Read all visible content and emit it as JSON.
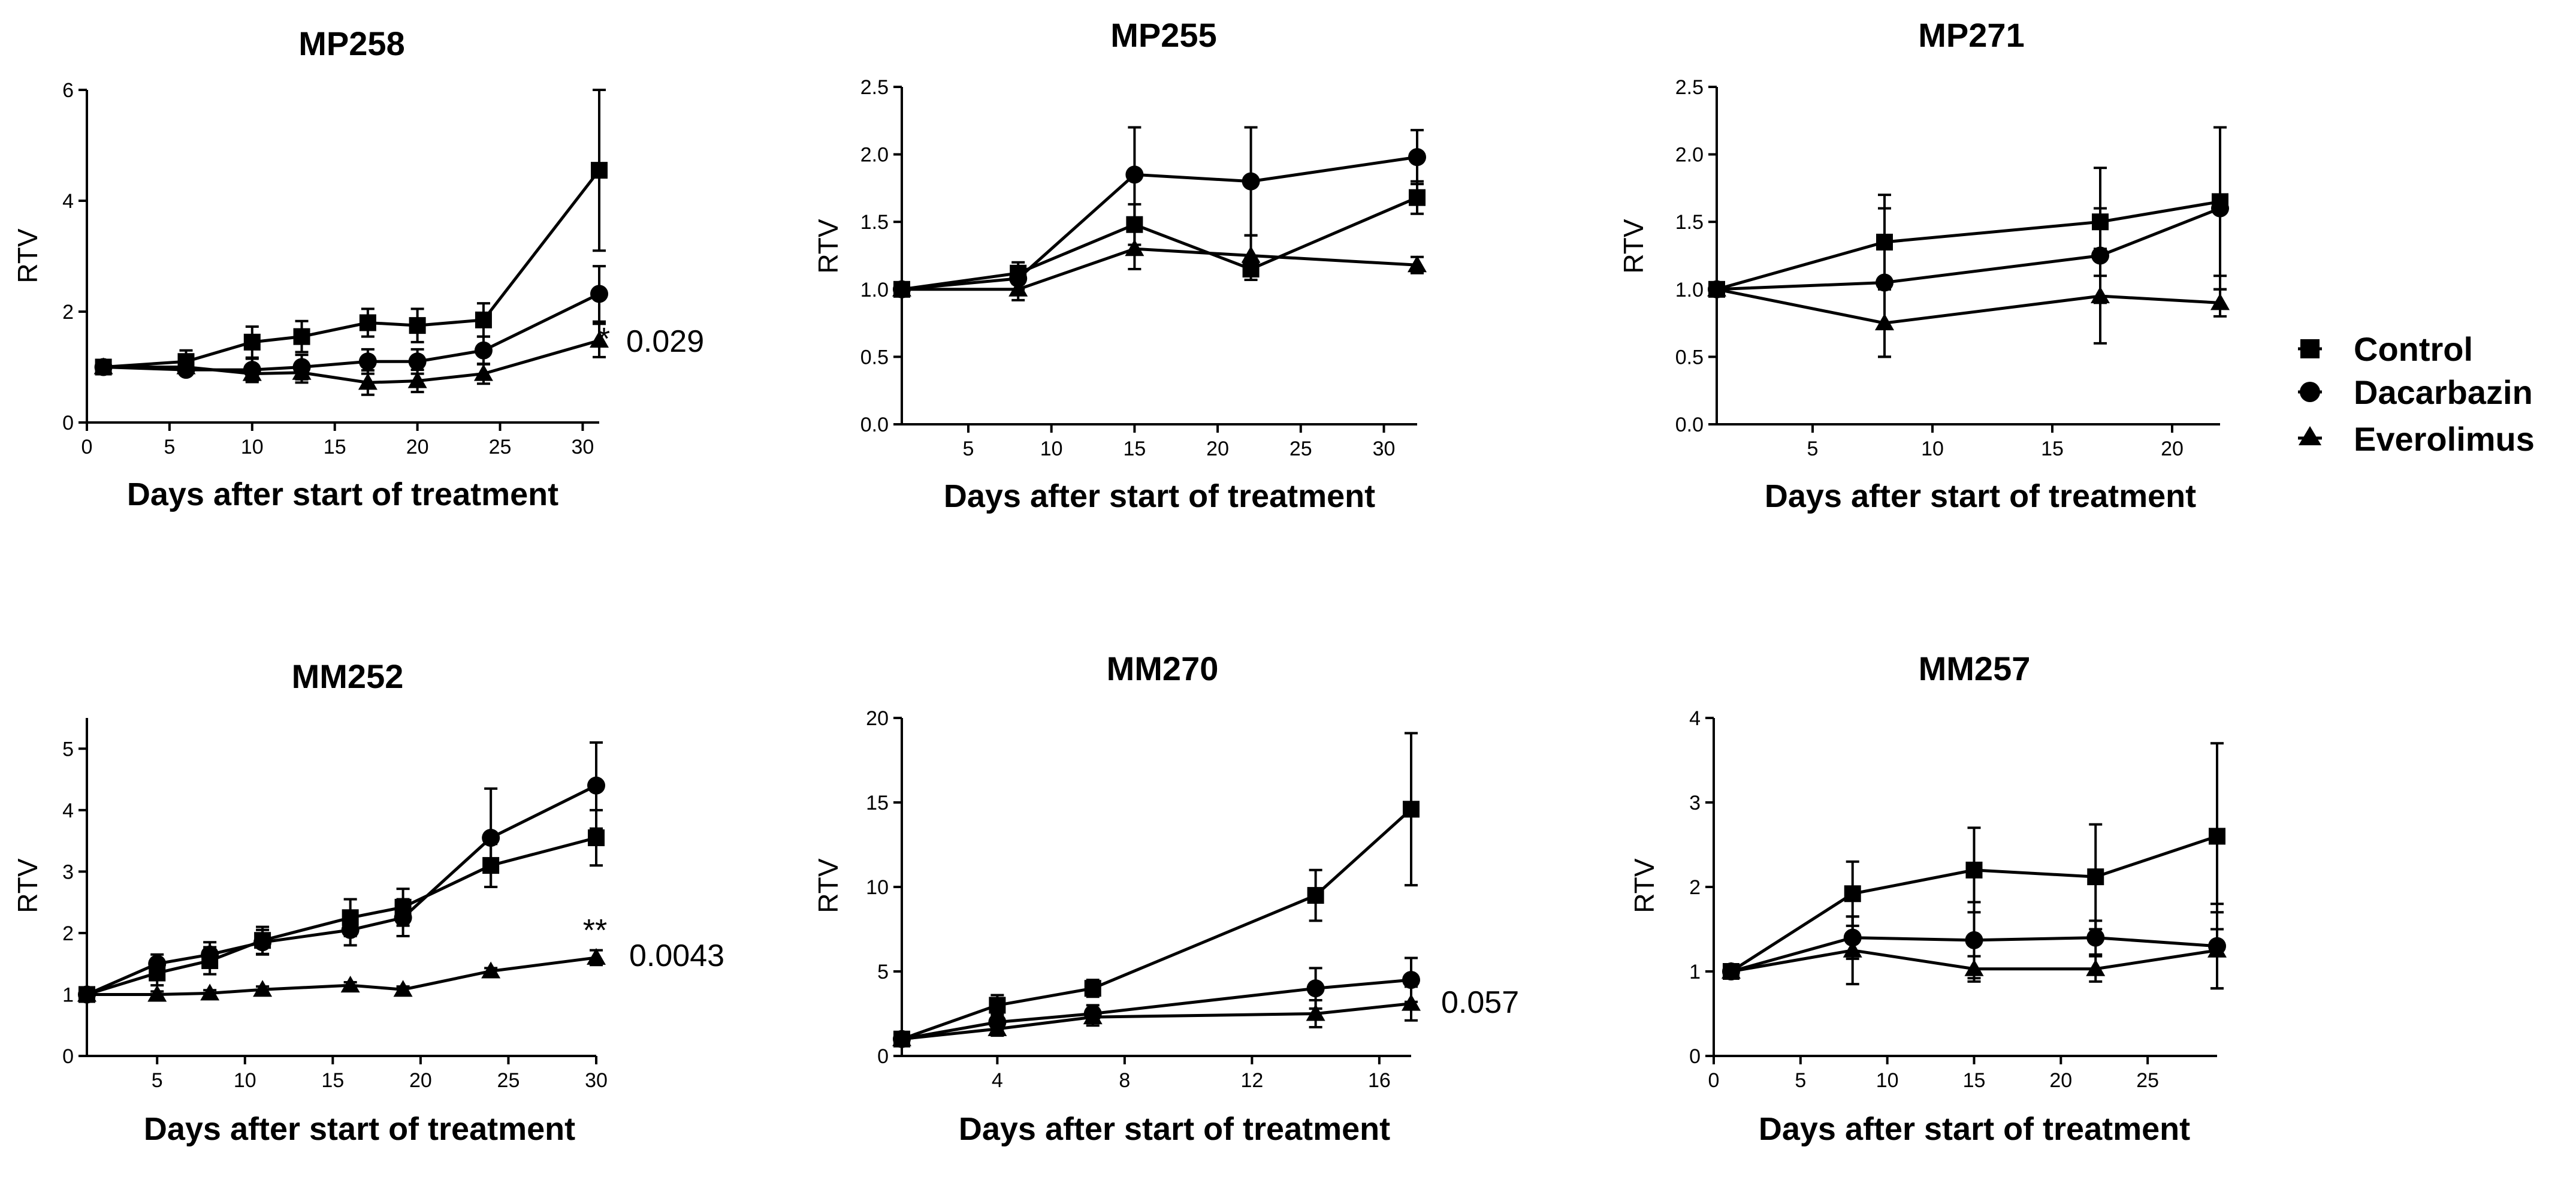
{
  "figure": {
    "legend": [
      {
        "label": "Control",
        "marker": "square"
      },
      {
        "label": "Dacarbazin",
        "marker": "circle"
      },
      {
        "label": "Everolimus",
        "marker": "triangle"
      }
    ]
  },
  "chart_data": [
    {
      "type": "line",
      "title": "MP258",
      "xlabel": "Days after start of treatment",
      "ylabel": "RTV",
      "xlim": [
        0,
        31
      ],
      "ylim": [
        0,
        6
      ],
      "xticks": [
        0,
        5,
        10,
        15,
        20,
        25,
        30
      ],
      "yticks": [
        0,
        2,
        4,
        6
      ],
      "ytick_decimals": 0,
      "annotation": {
        "star": "*",
        "pvalue": "0.029"
      },
      "series": [
        {
          "name": "Control",
          "marker": "square",
          "x": [
            1,
            6,
            10,
            13,
            17,
            20,
            24,
            31
          ],
          "y": [
            1.0,
            1.1,
            1.45,
            1.55,
            1.8,
            1.75,
            1.85,
            4.55
          ],
          "err": [
            0.05,
            0.2,
            0.28,
            0.28,
            0.25,
            0.3,
            0.3,
            1.45
          ]
        },
        {
          "name": "Dacarbazin",
          "marker": "circle",
          "x": [
            1,
            6,
            10,
            13,
            17,
            20,
            24,
            31
          ],
          "y": [
            1.0,
            0.95,
            0.95,
            1.0,
            1.1,
            1.1,
            1.3,
            2.32
          ],
          "err": [
            0.05,
            0.08,
            0.2,
            0.22,
            0.22,
            0.22,
            0.25,
            0.5
          ]
        },
        {
          "name": "Everolimus",
          "marker": "triangle",
          "x": [
            1,
            6,
            10,
            13,
            17,
            20,
            24,
            31
          ],
          "y": [
            1.0,
            1.0,
            0.88,
            0.9,
            0.72,
            0.75,
            0.88,
            1.48
          ],
          "err": [
            0.05,
            0.08,
            0.15,
            0.18,
            0.22,
            0.2,
            0.18,
            0.3
          ]
        }
      ]
    },
    {
      "type": "line",
      "title": "MP255",
      "xlabel": "Days after start of treatment",
      "ylabel": "RTV",
      "xlim": [
        1,
        32
      ],
      "ylim": [
        0,
        2.5
      ],
      "xticks": [
        5,
        10,
        15,
        20,
        25,
        30
      ],
      "yticks": [
        0,
        0.5,
        1.0,
        1.5,
        2.0,
        2.5
      ],
      "ytick_decimals": 1,
      "annotation": null,
      "series": [
        {
          "name": "Control",
          "marker": "square",
          "x": [
            1,
            8,
            15,
            22,
            32
          ],
          "y": [
            1.0,
            1.12,
            1.48,
            1.15,
            1.68
          ],
          "err": [
            0.02,
            0.08,
            0.15,
            0.08,
            0.12
          ]
        },
        {
          "name": "Dacarbazin",
          "marker": "circle",
          "x": [
            1,
            8,
            15,
            22,
            32
          ],
          "y": [
            1.0,
            1.08,
            1.85,
            1.8,
            1.98
          ],
          "err": [
            0.02,
            0.08,
            0.35,
            0.4,
            0.2
          ]
        },
        {
          "name": "Everolimus",
          "marker": "triangle",
          "x": [
            1,
            8,
            15,
            22,
            32
          ],
          "y": [
            1.0,
            1.0,
            1.3,
            1.25,
            1.18
          ],
          "err": [
            0.02,
            0.08,
            0.15,
            0.15,
            0.06
          ]
        }
      ]
    },
    {
      "type": "line",
      "title": "MP271",
      "xlabel": "Days after start of treatment",
      "ylabel": "RTV",
      "xlim": [
        1,
        22
      ],
      "ylim": [
        0,
        2.5
      ],
      "xticks": [
        5,
        10,
        15,
        20
      ],
      "yticks": [
        0,
        0.5,
        1.0,
        1.5,
        2.0,
        2.5
      ],
      "ytick_decimals": 1,
      "annotation": null,
      "series": [
        {
          "name": "Control",
          "marker": "square",
          "x": [
            1,
            8,
            17,
            22
          ],
          "y": [
            1.0,
            1.35,
            1.5,
            1.65
          ],
          "err": [
            0.02,
            0.35,
            0.4,
            0.55
          ]
        },
        {
          "name": "Dacarbazin",
          "marker": "circle",
          "x": [
            1,
            8,
            17,
            22
          ],
          "y": [
            1.0,
            1.05,
            1.25,
            1.6
          ],
          "err": [
            0.02,
            0.55,
            0.35,
            0.6
          ]
        },
        {
          "name": "Everolimus",
          "marker": "triangle",
          "x": [
            1,
            8,
            17,
            22
          ],
          "y": [
            1.0,
            0.75,
            0.95,
            0.9
          ],
          "err": [
            0.02,
            0.25,
            0.35,
            0.1
          ]
        }
      ]
    },
    {
      "type": "line",
      "title": "MM252",
      "xlabel": "Days after start of treatment",
      "ylabel": "RTV",
      "xlim": [
        1,
        30
      ],
      "ylim": [
        0,
        5.5
      ],
      "xticks": [
        5,
        10,
        15,
        20,
        25,
        30
      ],
      "yticks": [
        0,
        1,
        2,
        3,
        4,
        5
      ],
      "ytick_decimals": 0,
      "annotation": {
        "star": "**",
        "pvalue": "0.0043"
      },
      "series": [
        {
          "name": "Control",
          "marker": "square",
          "x": [
            1,
            5,
            8,
            11,
            16,
            19,
            24,
            30
          ],
          "y": [
            1.0,
            1.35,
            1.55,
            1.88,
            2.25,
            2.42,
            3.1,
            3.55
          ],
          "err": [
            0.02,
            0.2,
            0.22,
            0.22,
            0.3,
            0.3,
            0.35,
            0.45
          ]
        },
        {
          "name": "Dacarbazin",
          "marker": "circle",
          "x": [
            1,
            5,
            8,
            11,
            16,
            19,
            24,
            30
          ],
          "y": [
            1.0,
            1.5,
            1.65,
            1.85,
            2.05,
            2.25,
            3.55,
            4.4
          ],
          "err": [
            0.02,
            0.15,
            0.2,
            0.2,
            0.25,
            0.3,
            0.8,
            0.7
          ]
        },
        {
          "name": "Everolimus",
          "marker": "triangle",
          "x": [
            1,
            5,
            8,
            11,
            16,
            19,
            24,
            30
          ],
          "y": [
            1.0,
            1.0,
            1.02,
            1.08,
            1.15,
            1.08,
            1.38,
            1.6
          ],
          "err": [
            0.02,
            0.05,
            0.05,
            0.05,
            0.05,
            0.05,
            0.05,
            0.12
          ]
        }
      ]
    },
    {
      "type": "line",
      "title": "MM270",
      "xlabel": "Days after start of treatment",
      "ylabel": "RTV",
      "xlim": [
        1,
        17
      ],
      "ylim": [
        0,
        20
      ],
      "xticks": [
        4,
        8,
        12,
        16
      ],
      "yticks": [
        0,
        5,
        10,
        15,
        20
      ],
      "ytick_decimals": 0,
      "annotation": {
        "star": "",
        "pvalue": "0.057"
      },
      "series": [
        {
          "name": "Control",
          "marker": "square",
          "x": [
            1,
            4,
            7,
            14,
            17
          ],
          "y": [
            1.0,
            3.0,
            4.0,
            9.5,
            14.6
          ],
          "err": [
            0.1,
            0.6,
            0.5,
            1.5,
            4.5
          ]
        },
        {
          "name": "Dacarbazin",
          "marker": "circle",
          "x": [
            1,
            4,
            7,
            14,
            17
          ],
          "y": [
            1.0,
            2.0,
            2.5,
            4.0,
            4.5
          ],
          "err": [
            0.1,
            0.5,
            0.5,
            1.2,
            1.3
          ]
        },
        {
          "name": "Everolimus",
          "marker": "triangle",
          "x": [
            1,
            4,
            7,
            14,
            17
          ],
          "y": [
            1.0,
            1.6,
            2.3,
            2.5,
            3.1
          ],
          "err": [
            0.1,
            0.4,
            0.5,
            0.8,
            1.0
          ]
        }
      ]
    },
    {
      "type": "line",
      "title": "MM257",
      "xlabel": "Days after start of treatment",
      "ylabel": "RTV",
      "xlim": [
        0,
        29
      ],
      "ylim": [
        0,
        4
      ],
      "xticks": [
        0,
        5,
        10,
        15,
        20,
        25
      ],
      "yticks": [
        0,
        1,
        2,
        3,
        4
      ],
      "ytick_decimals": 0,
      "annotation": null,
      "series": [
        {
          "name": "Control",
          "marker": "square",
          "x": [
            1,
            8,
            15,
            22,
            29
          ],
          "y": [
            1.0,
            1.92,
            2.2,
            2.12,
            2.6
          ],
          "err": [
            0.02,
            0.38,
            0.5,
            0.62,
            1.1
          ]
        },
        {
          "name": "Dacarbazin",
          "marker": "circle",
          "x": [
            1,
            8,
            15,
            22,
            29
          ],
          "y": [
            1.0,
            1.4,
            1.37,
            1.4,
            1.3
          ],
          "err": [
            0.02,
            0.25,
            0.45,
            0.2,
            0.5
          ]
        },
        {
          "name": "Everolimus",
          "marker": "triangle",
          "x": [
            1,
            8,
            15,
            22,
            29
          ],
          "y": [
            1.0,
            1.25,
            1.03,
            1.03,
            1.25
          ],
          "err": [
            0.02,
            0.4,
            0.15,
            0.15,
            0.45
          ]
        }
      ]
    }
  ]
}
